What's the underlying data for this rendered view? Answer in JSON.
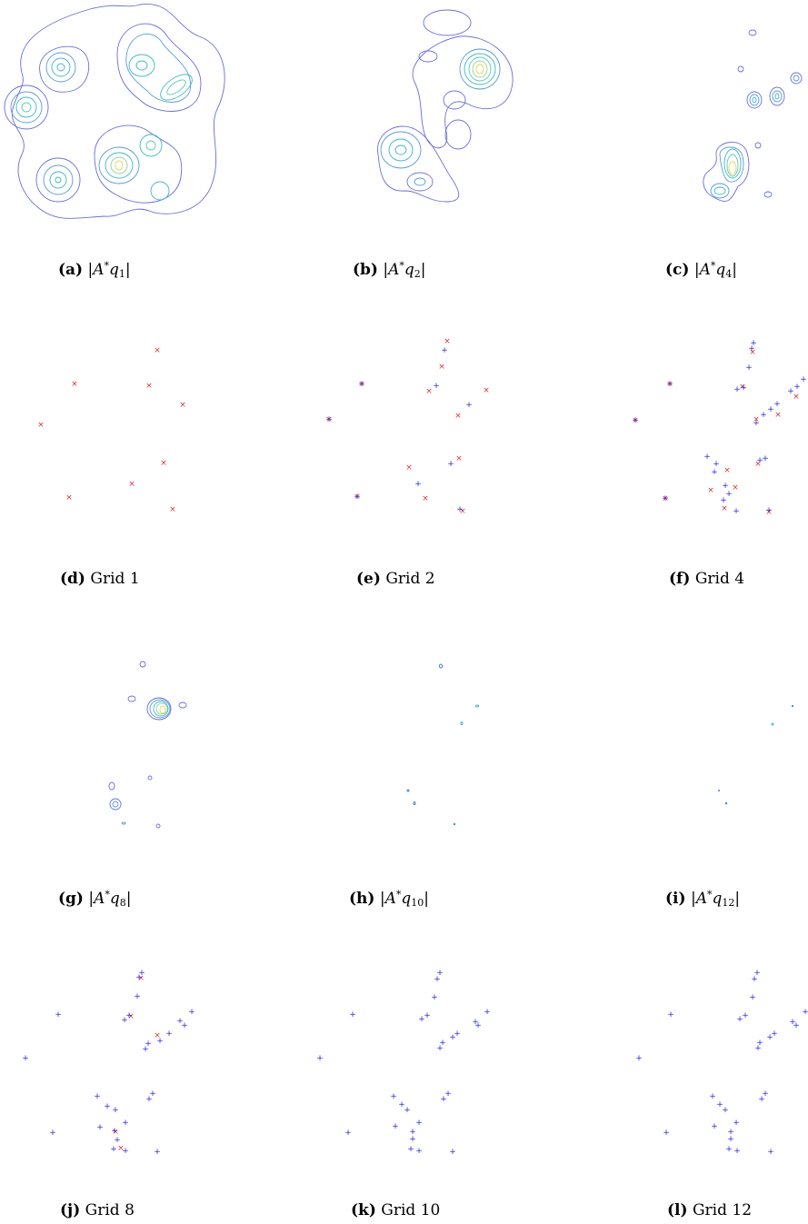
{
  "figure": {
    "panels": [
      {
        "id": "a",
        "label": "(a)",
        "text": "|A*q1|",
        "math": {
          "pre": "|",
          "sym": "A",
          "sup": "*",
          "var": "q",
          "sub": "1",
          "post": "|"
        }
      },
      {
        "id": "b",
        "label": "(b)",
        "text": "|A*q2|",
        "math": {
          "pre": "|",
          "sym": "A",
          "sup": "*",
          "var": "q",
          "sub": "2",
          "post": "|"
        }
      },
      {
        "id": "c",
        "label": "(c)",
        "text": "|A*q4|",
        "math": {
          "pre": "|",
          "sym": "A",
          "sup": "*",
          "var": "q",
          "sub": "4",
          "post": "|"
        }
      },
      {
        "id": "d",
        "label": "(d)",
        "text": "Grid 1"
      },
      {
        "id": "e",
        "label": "(e)",
        "text": "Grid 2"
      },
      {
        "id": "f",
        "label": "(f)",
        "text": "Grid 4"
      },
      {
        "id": "g",
        "label": "(g)",
        "text": "|A*q8|",
        "math": {
          "pre": "|",
          "sym": "A",
          "sup": "*",
          "var": "q",
          "sub": "8",
          "post": "|"
        }
      },
      {
        "id": "h",
        "label": "(h)",
        "text": "|A*q10|",
        "math": {
          "pre": "|",
          "sym": "A",
          "sup": "*",
          "var": "q",
          "sub": "10",
          "post": "|"
        }
      },
      {
        "id": "i",
        "label": "(i)",
        "text": "|A*q12|",
        "math": {
          "pre": "|",
          "sym": "A",
          "sup": "*",
          "var": "q",
          "sub": "12",
          "post": "|"
        }
      },
      {
        "id": "j",
        "label": "(j)",
        "text": "Grid 8"
      },
      {
        "id": "k",
        "label": "(k)",
        "text": "Grid 10"
      },
      {
        "id": "l",
        "label": "(l)",
        "text": "Grid 12"
      }
    ],
    "colors": {
      "contour_low": "#6a6fd8",
      "contour_mid": "#3fb6c8",
      "contour_high": "#e9d45a",
      "true_source_marker": "#e03030",
      "grid_marker": "#2a2ae0"
    },
    "markers": {
      "true_source": "×",
      "grid_point": "+"
    }
  }
}
